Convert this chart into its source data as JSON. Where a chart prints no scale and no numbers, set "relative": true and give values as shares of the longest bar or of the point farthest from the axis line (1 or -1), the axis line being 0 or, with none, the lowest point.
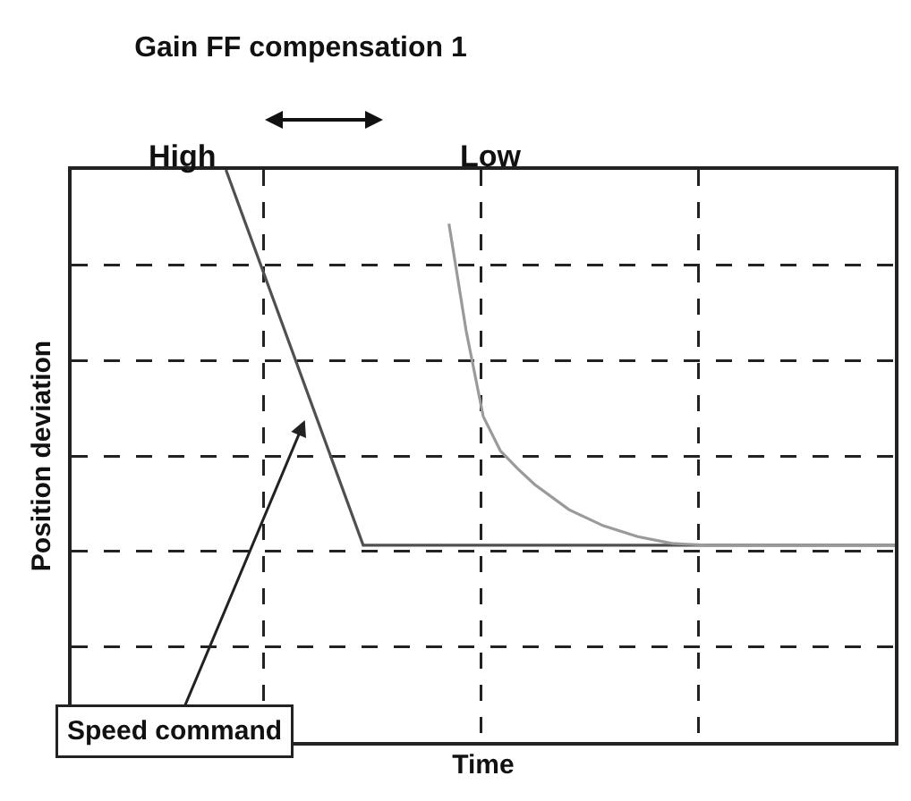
{
  "chart_data": {
    "type": "line",
    "relative": true,
    "title": "Gain FF compensation 1",
    "xlabel": "Time",
    "ylabel": "Position deviation",
    "categories": [
      null,
      null,
      null,
      null,
      null,
      null,
      null,
      null,
      null,
      null,
      null,
      null,
      null,
      null,
      null,
      null,
      null,
      null,
      null,
      null,
      null,
      null,
      null,
      null,
      null,
      null,
      null,
      null,
      null,
      null,
      null,
      null,
      null,
      null,
      null,
      null,
      null,
      null,
      null,
      null,
      null,
      null,
      null,
      null,
      null,
      null,
      null,
      null,
      null
    ],
    "series": [
      {
        "color": "#505050",
        "values": [
          null,
          null,
          null,
          null,
          null,
          null,
          null,
          null,
          null,
          1,
          null,
          null,
          null,
          null,
          null,
          null,
          null,
          0.344,
          null,
          null,
          null,
          null,
          null,
          null,
          null,
          null,
          null,
          null,
          null,
          null,
          null,
          null,
          null,
          null,
          null,
          null,
          null,
          null,
          null,
          null,
          null,
          null,
          null,
          null,
          null,
          null,
          null,
          null,
          0.344
        ]
      },
      {
        "color": "#9a9a9a",
        "values": [
          null,
          null,
          null,
          null,
          null,
          null,
          null,
          null,
          null,
          null,
          null,
          null,
          null,
          null,
          null,
          null,
          null,
          null,
          null,
          null,
          null,
          null,
          0.906,
          0.719,
          0.569,
          0.509,
          0.478,
          0.45,
          null,
          0.406,
          null,
          0.378,
          null,
          0.359,
          null,
          0.347,
          null,
          0.344,
          null,
          null,
          null,
          null,
          null,
          null,
          null,
          null,
          null,
          null,
          0.344
        ]
      }
    ],
    "annotations": [
      "High",
      "Low",
      "Speed command"
    ],
    "grid": true,
    "line_style": "solid"
  }
}
